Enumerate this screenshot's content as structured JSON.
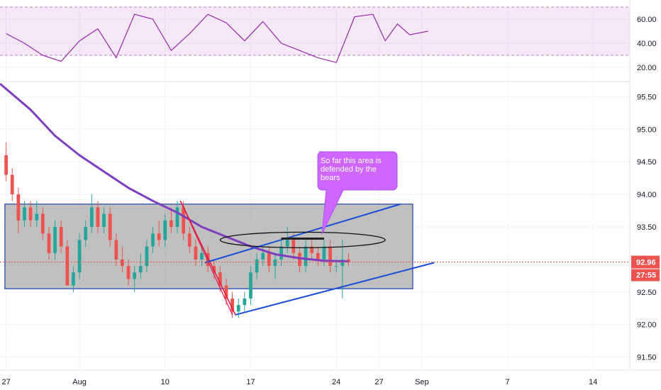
{
  "chart_data": [
    {
      "type": "line",
      "name": "rsi-pane",
      "ylim": [
        10,
        70
      ],
      "yticks": [
        20,
        40,
        60
      ],
      "band": [
        30,
        70
      ],
      "x": [
        0,
        3,
        6,
        9,
        12,
        15,
        18,
        21,
        24,
        27,
        30,
        33,
        36,
        39,
        42,
        45,
        48,
        51,
        54,
        57,
        60,
        62,
        64,
        66,
        69
      ],
      "values": [
        48,
        40,
        30,
        25,
        42,
        52,
        28,
        64,
        60,
        34,
        48,
        64,
        57,
        42,
        58,
        40,
        34,
        28,
        24,
        62,
        64,
        42,
        56,
        47,
        50
      ],
      "color": "#9c27b0"
    },
    {
      "type": "candlestick",
      "name": "price-pane",
      "x_ticks": [
        {
          "x": 0,
          "label": "27"
        },
        {
          "x": 12,
          "label": "Aug"
        },
        {
          "x": 26,
          "label": "10"
        },
        {
          "x": 40,
          "label": "17"
        },
        {
          "x": 54,
          "label": "24"
        },
        {
          "x": 61,
          "label": "27"
        },
        {
          "x": 68,
          "label": "Sep"
        },
        {
          "x": 82,
          "label": "7"
        },
        {
          "x": 96,
          "label": "14"
        }
      ],
      "y_ticks": [
        91.5,
        92.0,
        92.5,
        93.0,
        93.5,
        94.0,
        94.5,
        95.0,
        95.5
      ],
      "y_tick_labels": [
        "91.50",
        "92.00",
        "92.50",
        "93.00",
        "93.50",
        "94.00",
        "94.50",
        "95.00",
        "95.50"
      ],
      "ylim": [
        91.3,
        95.7
      ],
      "xlim": [
        -1,
        102
      ],
      "ohlc": [
        [
          0,
          94.6,
          94.8,
          94.2,
          94.3
        ],
        [
          1,
          94.3,
          94.4,
          93.9,
          94.0
        ],
        [
          2,
          94.0,
          94.1,
          93.4,
          93.6
        ],
        [
          3,
          93.6,
          93.9,
          93.5,
          93.8
        ],
        [
          4,
          93.8,
          93.9,
          93.5,
          93.6
        ],
        [
          5,
          93.6,
          93.9,
          93.5,
          93.7
        ],
        [
          6,
          93.7,
          93.8,
          93.3,
          93.4
        ],
        [
          7,
          93.4,
          93.5,
          93.0,
          93.1
        ],
        [
          8,
          93.1,
          93.6,
          93.0,
          93.5
        ],
        [
          9,
          93.5,
          93.6,
          93.1,
          93.2
        ],
        [
          10,
          93.2,
          93.3,
          92.6,
          92.6
        ],
        [
          11,
          92.6,
          92.9,
          92.5,
          92.8
        ],
        [
          12,
          92.8,
          93.4,
          92.7,
          93.3
        ],
        [
          13,
          93.3,
          93.6,
          93.2,
          93.5
        ],
        [
          14,
          93.5,
          94.0,
          93.4,
          93.8
        ],
        [
          15,
          93.8,
          93.9,
          93.4,
          93.5
        ],
        [
          16,
          93.5,
          93.8,
          93.4,
          93.7
        ],
        [
          17,
          93.7,
          93.8,
          93.2,
          93.3
        ],
        [
          18,
          93.3,
          93.4,
          92.9,
          93.0
        ],
        [
          19,
          93.0,
          93.2,
          92.8,
          92.9
        ],
        [
          20,
          92.9,
          93.0,
          92.6,
          92.7
        ],
        [
          21,
          92.7,
          92.9,
          92.5,
          92.8
        ],
        [
          22,
          92.8,
          93.1,
          92.7,
          92.9
        ],
        [
          23,
          92.9,
          93.3,
          92.8,
          93.2
        ],
        [
          24,
          93.2,
          93.5,
          93.1,
          93.4
        ],
        [
          25,
          93.4,
          93.6,
          93.2,
          93.3
        ],
        [
          26,
          93.3,
          93.7,
          93.2,
          93.6
        ],
        [
          27,
          93.6,
          93.8,
          93.4,
          93.5
        ],
        [
          28,
          93.5,
          93.9,
          93.4,
          93.8
        ],
        [
          29,
          93.8,
          93.9,
          93.3,
          93.4
        ],
        [
          30,
          93.4,
          93.5,
          93.1,
          93.2
        ],
        [
          31,
          93.2,
          93.3,
          92.9,
          93.0
        ],
        [
          32,
          93.0,
          93.2,
          92.9,
          93.1
        ],
        [
          33,
          93.1,
          93.2,
          92.8,
          92.9
        ],
        [
          34,
          92.9,
          93.0,
          92.7,
          92.8
        ],
        [
          35,
          92.8,
          92.9,
          92.5,
          92.6
        ],
        [
          36,
          92.6,
          92.7,
          92.3,
          92.4
        ],
        [
          37,
          92.4,
          92.5,
          92.1,
          92.2
        ],
        [
          38,
          92.2,
          92.4,
          92.1,
          92.3
        ],
        [
          39,
          92.3,
          92.5,
          92.2,
          92.4
        ],
        [
          40,
          92.4,
          92.9,
          92.3,
          92.8
        ],
        [
          41,
          92.8,
          93.1,
          92.7,
          93.0
        ],
        [
          42,
          93.0,
          93.2,
          92.9,
          93.1
        ],
        [
          43,
          93.1,
          93.2,
          92.8,
          92.9
        ],
        [
          44,
          92.9,
          93.1,
          92.7,
          93.0
        ],
        [
          45,
          93.0,
          93.3,
          92.9,
          93.2
        ],
        [
          46,
          93.2,
          93.5,
          93.1,
          93.3
        ],
        [
          47,
          93.3,
          93.4,
          93.0,
          93.1
        ],
        [
          48,
          93.1,
          93.2,
          92.8,
          92.9
        ],
        [
          49,
          92.9,
          93.3,
          92.8,
          93.2
        ],
        [
          50,
          93.2,
          93.3,
          93.0,
          93.1
        ],
        [
          51,
          93.1,
          93.2,
          92.9,
          93.0
        ],
        [
          52,
          93.0,
          93.3,
          92.9,
          93.2
        ],
        [
          53,
          93.2,
          93.3,
          92.8,
          92.9
        ],
        [
          54,
          92.9,
          93.0,
          92.8,
          92.9
        ],
        [
          55,
          92.9,
          93.3,
          92.4,
          93.0
        ],
        [
          56,
          93.0,
          93.1,
          92.9,
          92.96
        ]
      ],
      "colors": {
        "up": "#26a69a",
        "down": "#ef5350"
      },
      "last_price_label": "92.96",
      "countdown_label": "27:55",
      "ma_x": [
        -1,
        4,
        8,
        12,
        16,
        20,
        24,
        28,
        32,
        36,
        40,
        44,
        48,
        52,
        56
      ],
      "ma_y": [
        95.7,
        95.3,
        94.9,
        94.6,
        94.35,
        94.1,
        93.9,
        93.72,
        93.5,
        93.35,
        93.2,
        93.08,
        93.02,
        92.98,
        92.97
      ],
      "ma_color": "#7e3fbf",
      "annotation": "So far this area is\ndefended by the\nbears"
    }
  ]
}
